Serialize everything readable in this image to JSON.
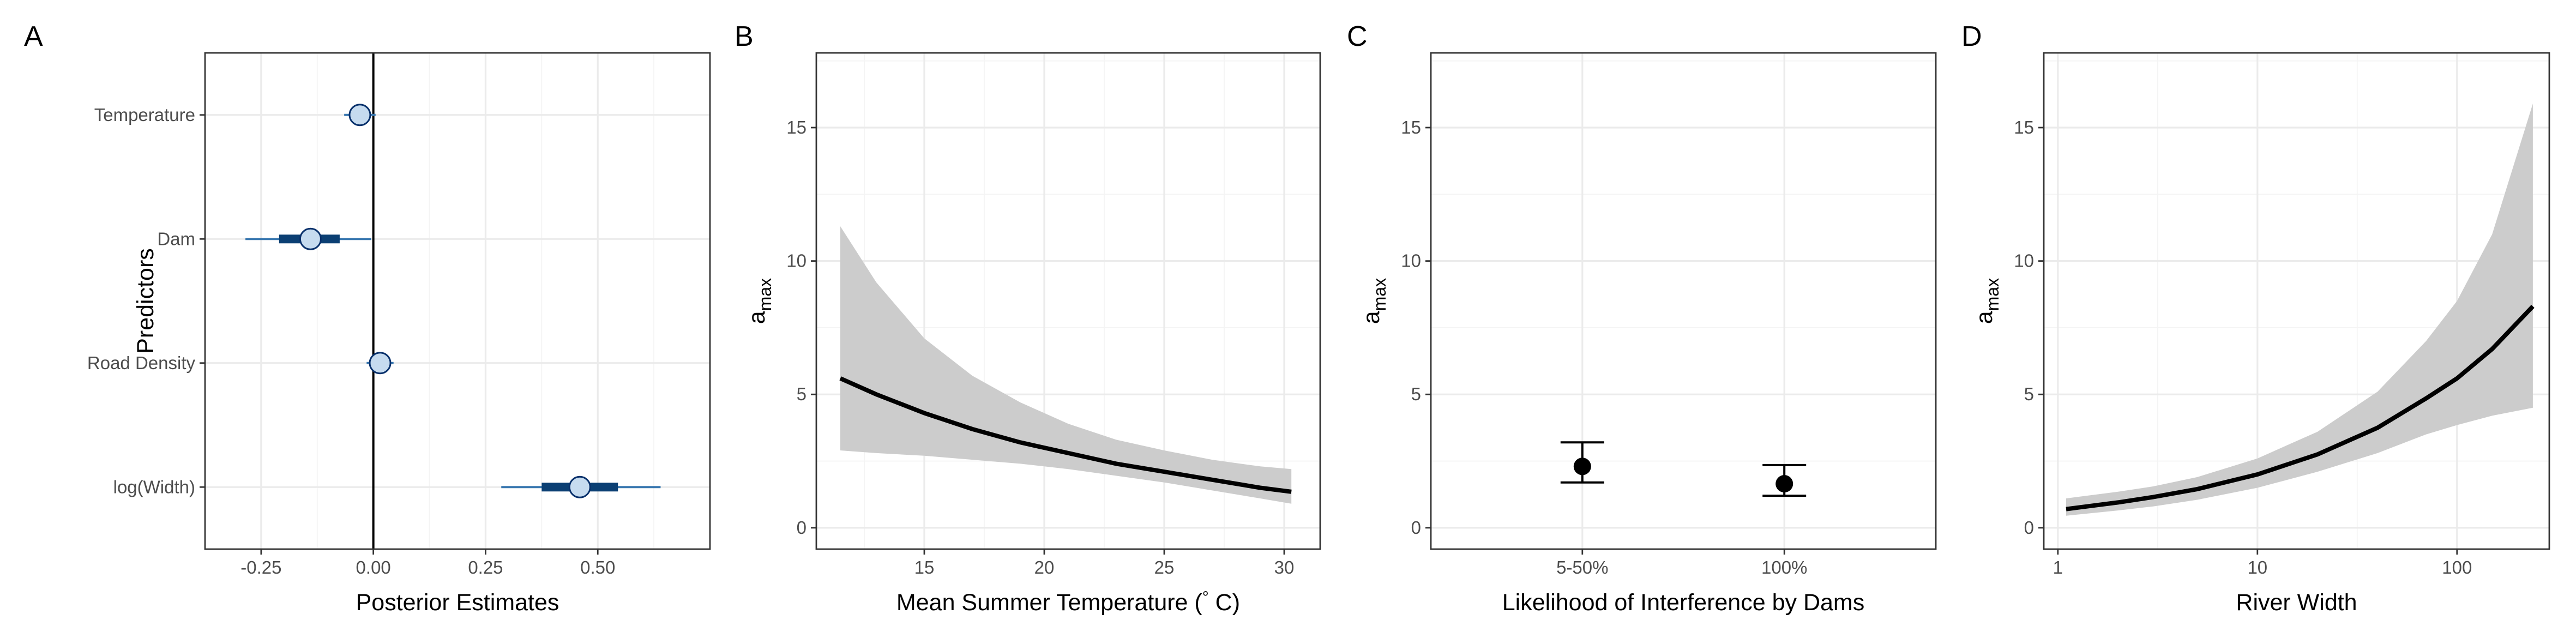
{
  "chart_data": [
    {
      "panel_tag": "A",
      "type": "interval",
      "xlabel": "Posterior Estimates",
      "ylabel": "Predictors",
      "xlim": [
        -0.375,
        0.75
      ],
      "x_ticks": [
        -0.25,
        0.0,
        0.25,
        0.5
      ],
      "x_tick_labels": [
        "-0.25",
        "0.00",
        "0.25",
        "0.50"
      ],
      "reference_line_x": 0.0,
      "rows": [
        {
          "label": "Temperature",
          "median": -0.03,
          "inner": [
            -0.045,
            -0.015
          ],
          "outer": [
            -0.065,
            0.005
          ]
        },
        {
          "label": "Dam",
          "median": -0.14,
          "inner": [
            -0.21,
            -0.075
          ],
          "outer": [
            -0.285,
            -0.005
          ]
        },
        {
          "label": "Road Density",
          "median": 0.015,
          "inner": [
            0.0,
            0.03
          ],
          "outer": [
            -0.015,
            0.045
          ]
        },
        {
          "label": "log(Width)",
          "median": 0.46,
          "inner": [
            0.375,
            0.545
          ],
          "outer": [
            0.285,
            0.64
          ]
        }
      ],
      "colors": {
        "interval": "#0b3f73",
        "point_fill": "#c6dbef",
        "point_stroke": "#08306b"
      }
    },
    {
      "panel_tag": "B",
      "type": "line",
      "xlabel_main": "Mean Summer Temperature (",
      "xlabel_deg": "°",
      "xlabel_unit": " C)",
      "ylabel_main": "a",
      "ylabel_sub": "max",
      "xlim": [
        10.5,
        31.5
      ],
      "ylim": [
        -0.8,
        17.8
      ],
      "x_ticks": [
        15,
        20,
        25,
        30
      ],
      "x_tick_labels": [
        "15",
        "20",
        "25",
        "30"
      ],
      "y_ticks": [
        0,
        5,
        10,
        15
      ],
      "y_tick_labels": [
        "0",
        "5",
        "10",
        "15"
      ],
      "x": [
        11.5,
        13.0,
        15.0,
        17.0,
        19.0,
        21.0,
        23.0,
        25.0,
        27.0,
        29.0,
        30.3
      ],
      "y": [
        5.6,
        5.0,
        4.3,
        3.7,
        3.2,
        2.8,
        2.4,
        2.1,
        1.8,
        1.5,
        1.35
      ],
      "lower": [
        2.9,
        2.8,
        2.7,
        2.55,
        2.4,
        2.2,
        1.95,
        1.7,
        1.4,
        1.1,
        0.9
      ],
      "upper": [
        11.3,
        9.2,
        7.1,
        5.7,
        4.7,
        3.9,
        3.3,
        2.9,
        2.55,
        2.3,
        2.2
      ],
      "colors": {
        "line": "#000000",
        "band": "#cccccc"
      }
    },
    {
      "panel_tag": "C",
      "type": "errorbar",
      "xlabel": "Likelihood of Interference by Dams",
      "ylabel_main": "a",
      "ylabel_sub": "max",
      "ylim": [
        -0.8,
        17.8
      ],
      "categories": [
        "5-50%",
        "100%"
      ],
      "y_ticks": [
        0,
        5,
        10,
        15
      ],
      "y_tick_labels": [
        "0",
        "5",
        "10",
        "15"
      ],
      "values": [
        2.3,
        1.65
      ],
      "lower": [
        1.7,
        1.2
      ],
      "upper": [
        3.2,
        2.35
      ],
      "colors": {
        "point": "#000000"
      }
    },
    {
      "panel_tag": "D",
      "type": "line",
      "log_x": true,
      "xlabel": "River Width",
      "ylabel_main": "a",
      "ylabel_sub": "max",
      "xlim": [
        0.85,
        290
      ],
      "ylim": [
        -0.8,
        17.8
      ],
      "x_ticks": [
        1,
        10,
        100
      ],
      "x_tick_labels": [
        "1",
        "10",
        "100"
      ],
      "y_ticks": [
        0,
        5,
        10,
        15
      ],
      "y_tick_labels": [
        "0",
        "5",
        "10",
        "15"
      ],
      "x": [
        1.1,
        2,
        3,
        5,
        10,
        20,
        40,
        70,
        100,
        150,
        240
      ],
      "y": [
        0.7,
        0.95,
        1.15,
        1.45,
        2.0,
        2.75,
        3.75,
        4.85,
        5.6,
        6.7,
        8.3
      ],
      "lower": [
        0.45,
        0.65,
        0.8,
        1.05,
        1.5,
        2.1,
        2.8,
        3.5,
        3.85,
        4.2,
        4.5
      ],
      "upper": [
        1.1,
        1.35,
        1.55,
        1.9,
        2.6,
        3.6,
        5.1,
        7.0,
        8.5,
        11.0,
        15.9
      ],
      "colors": {
        "line": "#000000",
        "band": "#cccccc"
      }
    }
  ]
}
